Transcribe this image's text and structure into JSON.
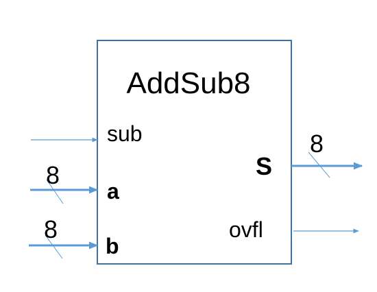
{
  "block": {
    "title": "AddSub8",
    "ports": {
      "sub": "sub",
      "a": "a",
      "b": "b",
      "s": "S",
      "ovfl": "ovfl"
    }
  },
  "bus_widths": {
    "a": "8",
    "b": "8",
    "s": "8"
  },
  "colors": {
    "box_stroke": "#41719c",
    "wire": "#5b9bd5",
    "text": "#000000"
  }
}
